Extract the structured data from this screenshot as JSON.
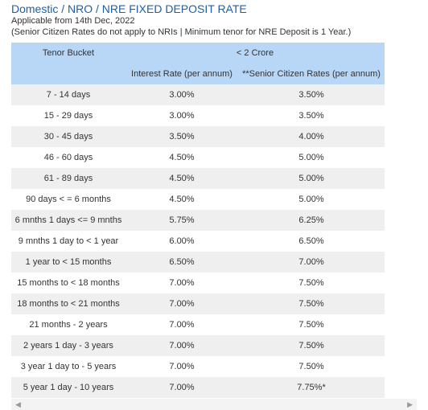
{
  "header": {
    "title": "Domestic / NRO / NRE FIXED DEPOSIT RATE",
    "applicable": "Applicable from 14th Dec, 2022",
    "note": "(Senior Citizen Rates do not apply to NRIs | Minimum tenor for NRE Deposit is 1 Year.)"
  },
  "table": {
    "col_tenor": "Tenor Bucket",
    "group": "< 2 Crore",
    "col_interest": "Interest Rate (per annum)",
    "col_senior": "**Senior Citizen Rates (per annum)",
    "rows": [
      {
        "tenor": "7 - 14 days",
        "rate": "3.00%",
        "senior": "3.50%"
      },
      {
        "tenor": "15 - 29 days",
        "rate": "3.00%",
        "senior": "3.50%"
      },
      {
        "tenor": "30 - 45 days",
        "rate": "3.50%",
        "senior": "4.00%"
      },
      {
        "tenor": "46 - 60 days",
        "rate": "4.50%",
        "senior": "5.00%"
      },
      {
        "tenor": "61 - 89 days",
        "rate": "4.50%",
        "senior": "5.00%"
      },
      {
        "tenor": "90 days < = 6 months",
        "rate": "4.50%",
        "senior": "5.00%"
      },
      {
        "tenor": "6 mnths 1 days <= 9 mnths",
        "rate": "5.75%",
        "senior": "6.25%"
      },
      {
        "tenor": "9 mnths 1 day to < 1 year",
        "rate": "6.00%",
        "senior": "6.50%"
      },
      {
        "tenor": "1 year to < 15 months",
        "rate": "6.50%",
        "senior": "7.00%"
      },
      {
        "tenor": "15 months to < 18 months",
        "rate": "7.00%",
        "senior": "7.50%"
      },
      {
        "tenor": "18 months to < 21 months",
        "rate": "7.00%",
        "senior": "7.50%"
      },
      {
        "tenor": "21 months - 2 years",
        "rate": "7.00%",
        "senior": "7.50%"
      },
      {
        "tenor": "2 years 1 day - 3 years",
        "rate": "7.00%",
        "senior": "7.50%"
      },
      {
        "tenor": "3 year 1 day to - 5 years",
        "rate": "7.00%",
        "senior": "7.50%"
      },
      {
        "tenor": "5 year 1 day - 10 years",
        "rate": "7.00%",
        "senior": "7.75%*"
      }
    ]
  },
  "scrollbar": {
    "left_icon": "scroll-left-arrow-icon",
    "right_icon": "scroll-right-arrow-icon"
  }
}
